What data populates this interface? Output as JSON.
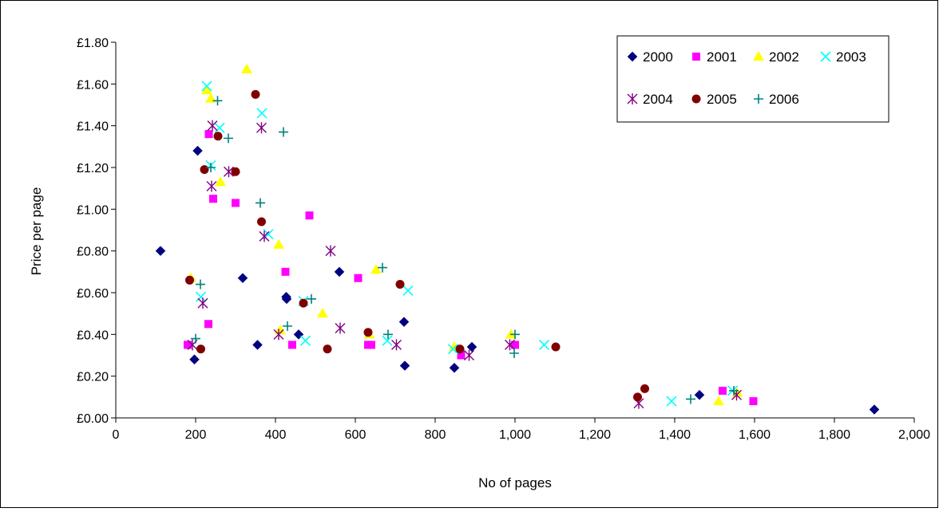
{
  "chart_data": {
    "type": "scatter",
    "title": "",
    "xlabel": "No of pages",
    "ylabel": "Price per page",
    "xlim": [
      0,
      2000
    ],
    "ylim": [
      0,
      1.8
    ],
    "x_ticks": [
      0,
      200,
      400,
      600,
      800,
      1000,
      1200,
      1400,
      1600,
      1800,
      2000
    ],
    "x_tick_labels": [
      "0",
      "200",
      "400",
      "600",
      "800",
      "1,000",
      "1,200",
      "1,400",
      "1,600",
      "1,800",
      "2,000"
    ],
    "y_ticks": [
      0,
      0.2,
      0.4,
      0.6,
      0.8,
      1.0,
      1.2,
      1.4,
      1.6,
      1.8
    ],
    "y_tick_labels": [
      "£0.00",
      "£0.20",
      "£0.40",
      "£0.60",
      "£0.80",
      "£1.00",
      "£1.20",
      "£1.40",
      "£1.60",
      "£1.80"
    ],
    "grid": false,
    "legend_position": "top-right",
    "series": [
      {
        "name": "2000",
        "marker": "diamond",
        "color": "#000080",
        "points": [
          [
            112,
            0.8
          ],
          [
            197,
            0.28
          ],
          [
            205,
            1.28
          ],
          [
            318,
            0.67
          ],
          [
            355,
            0.35
          ],
          [
            427,
            0.58
          ],
          [
            428,
            0.57
          ],
          [
            458,
            0.4
          ],
          [
            560,
            0.7
          ],
          [
            722,
            0.46
          ],
          [
            724,
            0.25
          ],
          [
            848,
            0.24
          ],
          [
            892,
            0.34
          ],
          [
            1462,
            0.11
          ],
          [
            1900,
            0.04
          ]
        ]
      },
      {
        "name": "2001",
        "marker": "square",
        "color": "#ff00ff",
        "points": [
          [
            180,
            0.35
          ],
          [
            232,
            0.45
          ],
          [
            233,
            1.36
          ],
          [
            244,
            1.05
          ],
          [
            300,
            1.03
          ],
          [
            425,
            0.7
          ],
          [
            442,
            0.35
          ],
          [
            485,
            0.97
          ],
          [
            607,
            0.67
          ],
          [
            632,
            0.35
          ],
          [
            640,
            0.35
          ],
          [
            865,
            0.3
          ],
          [
            1000,
            0.35
          ],
          [
            1520,
            0.13
          ],
          [
            1597,
            0.08
          ]
        ]
      },
      {
        "name": "2002",
        "marker": "triangle",
        "color": "#ffff00",
        "points": [
          [
            188,
            0.67
          ],
          [
            228,
            1.57
          ],
          [
            238,
            1.53
          ],
          [
            262,
            1.13
          ],
          [
            328,
            1.67
          ],
          [
            408,
            0.83
          ],
          [
            412,
            0.42
          ],
          [
            518,
            0.5
          ],
          [
            635,
            0.4
          ],
          [
            652,
            0.71
          ],
          [
            848,
            0.34
          ],
          [
            990,
            0.4
          ],
          [
            1510,
            0.08
          ],
          [
            1557,
            0.12
          ]
        ]
      },
      {
        "name": "2003",
        "marker": "x",
        "color": "#00ffff",
        "points": [
          [
            213,
            0.58
          ],
          [
            228,
            1.59
          ],
          [
            238,
            1.21
          ],
          [
            260,
            1.39
          ],
          [
            366,
            1.46
          ],
          [
            382,
            0.88
          ],
          [
            470,
            0.56
          ],
          [
            475,
            0.37
          ],
          [
            680,
            0.37
          ],
          [
            732,
            0.61
          ],
          [
            845,
            0.33
          ],
          [
            1073,
            0.35
          ],
          [
            1392,
            0.08
          ],
          [
            1545,
            0.13
          ]
        ]
      },
      {
        "name": "2004",
        "marker": "asterisk",
        "color": "#800080",
        "points": [
          [
            192,
            0.35
          ],
          [
            218,
            0.55
          ],
          [
            240,
            1.11
          ],
          [
            242,
            1.4
          ],
          [
            283,
            1.18
          ],
          [
            365,
            1.39
          ],
          [
            372,
            0.87
          ],
          [
            408,
            0.4
          ],
          [
            538,
            0.8
          ],
          [
            562,
            0.43
          ],
          [
            703,
            0.35
          ],
          [
            885,
            0.3
          ],
          [
            987,
            0.35
          ],
          [
            1310,
            0.07
          ],
          [
            1555,
            0.11
          ]
        ]
      },
      {
        "name": "2005",
        "marker": "circle",
        "color": "#800000",
        "points": [
          [
            185,
            0.66
          ],
          [
            213,
            0.33
          ],
          [
            222,
            1.19
          ],
          [
            256,
            1.35
          ],
          [
            300,
            1.18
          ],
          [
            350,
            1.55
          ],
          [
            365,
            0.94
          ],
          [
            470,
            0.55
          ],
          [
            530,
            0.33
          ],
          [
            632,
            0.41
          ],
          [
            712,
            0.64
          ],
          [
            862,
            0.33
          ],
          [
            1102,
            0.34
          ],
          [
            1307,
            0.1
          ],
          [
            1325,
            0.14
          ]
        ]
      },
      {
        "name": "2006",
        "marker": "plus",
        "color": "#008080",
        "points": [
          [
            200,
            0.38
          ],
          [
            212,
            0.64
          ],
          [
            238,
            1.2
          ],
          [
            255,
            1.52
          ],
          [
            282,
            1.34
          ],
          [
            362,
            1.03
          ],
          [
            420,
            1.37
          ],
          [
            430,
            0.44
          ],
          [
            490,
            0.57
          ],
          [
            668,
            0.72
          ],
          [
            682,
            0.4
          ],
          [
            998,
            0.31
          ],
          [
            1000,
            0.4
          ],
          [
            1440,
            0.09
          ],
          [
            1548,
            0.13
          ]
        ]
      }
    ]
  }
}
